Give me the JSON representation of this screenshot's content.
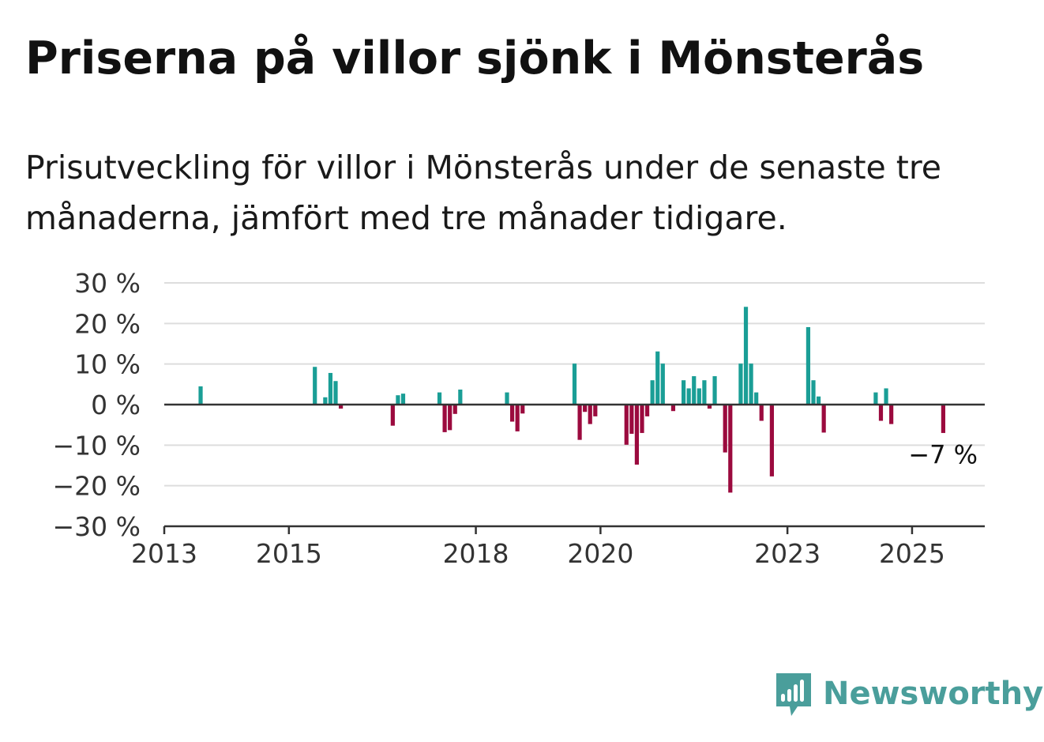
{
  "title": "Priserna på villor sjönk i Mönsterås",
  "subtitle": "Prisutveckling för villor i Mönsterås under de senaste tre månaderna, jämfört med tre månader tidigare.",
  "brand": {
    "name": "Newsworthy",
    "icon": "newsworthy-logo-icon",
    "color": "#4a9e9b"
  },
  "colors": {
    "positive": "#1a9e96",
    "negative": "#9b0a3e",
    "grid": "#dddddd",
    "axis": "#333333"
  },
  "chart_data": {
    "type": "bar",
    "title": "Priserna på villor sjönk i Mönsterås",
    "subtitle": "Prisutveckling för villor i Mönsterås under de senaste tre månaderna, jämfört med tre månader tidigare.",
    "xlabel": "",
    "ylabel": "",
    "unit": "%",
    "ylim": [
      -30,
      30
    ],
    "yticks": [
      30,
      20,
      10,
      0,
      -10,
      -20,
      -30
    ],
    "ytick_labels": [
      "30 %",
      "20 %",
      "10 %",
      "0 %",
      "−10 %",
      "−20 %",
      "−30 %"
    ],
    "xlim": [
      "2013-01",
      "2026-03"
    ],
    "xticks": [
      "2013-01",
      "2015-01",
      "2018-01",
      "2020-01",
      "2023-01",
      "2025-01"
    ],
    "xtick_labels": [
      "2013",
      "2015",
      "2018",
      "2020",
      "2023",
      "2025"
    ],
    "grid": true,
    "legend": "none",
    "end_label": "−7 %",
    "points": [
      {
        "x": "2013-08",
        "y": 4.5
      },
      {
        "x": "2015-06",
        "y": 9.3
      },
      {
        "x": "2015-08",
        "y": 1.8
      },
      {
        "x": "2015-09",
        "y": 7.8
      },
      {
        "x": "2015-10",
        "y": 5.8
      },
      {
        "x": "2015-11",
        "y": -1.0
      },
      {
        "x": "2016-09",
        "y": -5.2
      },
      {
        "x": "2016-10",
        "y": 2.3
      },
      {
        "x": "2016-11",
        "y": 2.7
      },
      {
        "x": "2017-06",
        "y": 3.0
      },
      {
        "x": "2017-07",
        "y": -6.8
      },
      {
        "x": "2017-08",
        "y": -6.3
      },
      {
        "x": "2017-09",
        "y": -2.3
      },
      {
        "x": "2017-10",
        "y": 3.7
      },
      {
        "x": "2018-07",
        "y": 3.0
      },
      {
        "x": "2018-08",
        "y": -4.2
      },
      {
        "x": "2018-09",
        "y": -6.6
      },
      {
        "x": "2018-10",
        "y": -2.2
      },
      {
        "x": "2019-08",
        "y": 10.1
      },
      {
        "x": "2019-09",
        "y": -8.7
      },
      {
        "x": "2019-10",
        "y": -1.8
      },
      {
        "x": "2019-11",
        "y": -4.8
      },
      {
        "x": "2019-12",
        "y": -2.9
      },
      {
        "x": "2020-06",
        "y": -9.9
      },
      {
        "x": "2020-07",
        "y": -7.2
      },
      {
        "x": "2020-08",
        "y": -14.8
      },
      {
        "x": "2020-09",
        "y": -7.0
      },
      {
        "x": "2020-10",
        "y": -2.9
      },
      {
        "x": "2020-11",
        "y": 6.0
      },
      {
        "x": "2020-12",
        "y": 13.1
      },
      {
        "x": "2021-01",
        "y": 10.1
      },
      {
        "x": "2021-03",
        "y": -1.6
      },
      {
        "x": "2021-05",
        "y": 6.0
      },
      {
        "x": "2021-06",
        "y": 4.0
      },
      {
        "x": "2021-07",
        "y": 7.0
      },
      {
        "x": "2021-08",
        "y": 4.0
      },
      {
        "x": "2021-09",
        "y": 6.0
      },
      {
        "x": "2021-10",
        "y": -1.0
      },
      {
        "x": "2021-11",
        "y": 7.0
      },
      {
        "x": "2022-01",
        "y": -11.8
      },
      {
        "x": "2022-02",
        "y": -21.7
      },
      {
        "x": "2022-04",
        "y": 10.1
      },
      {
        "x": "2022-05",
        "y": 24.1
      },
      {
        "x": "2022-06",
        "y": 10.1
      },
      {
        "x": "2022-07",
        "y": 3.0
      },
      {
        "x": "2022-08",
        "y": -4.0
      },
      {
        "x": "2022-10",
        "y": -17.7
      },
      {
        "x": "2023-05",
        "y": 19.1
      },
      {
        "x": "2023-06",
        "y": 6.0
      },
      {
        "x": "2023-07",
        "y": 2.0
      },
      {
        "x": "2023-08",
        "y": -6.9
      },
      {
        "x": "2024-06",
        "y": 3.0
      },
      {
        "x": "2024-07",
        "y": -4.0
      },
      {
        "x": "2024-08",
        "y": 4.0
      },
      {
        "x": "2024-09",
        "y": -4.8
      },
      {
        "x": "2025-07",
        "y": -7.0
      }
    ]
  }
}
